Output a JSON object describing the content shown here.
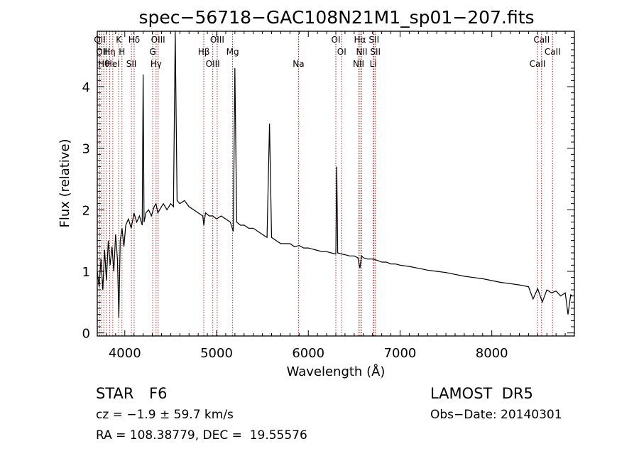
{
  "chart_data": {
    "type": "line",
    "title": "spec−56718−GAC108N21M1_sp01−207.fits",
    "xlabel": "Wavelength (Å)",
    "ylabel": "Flux (relative)",
    "xlim": [
      3700,
      8900
    ],
    "ylim": [
      -0.05,
      4.9
    ],
    "x_ticks": [
      4000,
      5000,
      6000,
      7000,
      8000
    ],
    "y_ticks": [
      0,
      1,
      2,
      3,
      4
    ],
    "grid": false,
    "series": [
      {
        "color": "#000000",
        "x": [
          3700,
          3720,
          3740,
          3760,
          3780,
          3800,
          3820,
          3840,
          3860,
          3880,
          3900,
          3920,
          3935,
          3950,
          3970,
          3990,
          4010,
          4040,
          4070,
          4100,
          4130,
          4160,
          4190,
          4200,
          4210,
          4230,
          4260,
          4290,
          4320,
          4340,
          4360,
          4380,
          4420,
          4460,
          4500,
          4530,
          4550,
          4570,
          4600,
          4650,
          4700,
          4750,
          4800,
          4850,
          4861,
          4880,
          4920,
          4960,
          5000,
          5050,
          5100,
          5150,
          5183,
          5200,
          5220,
          5260,
          5300,
          5350,
          5400,
          5450,
          5500,
          5550,
          5577,
          5600,
          5650,
          5700,
          5750,
          5800,
          5850,
          5900,
          5950,
          6000,
          6050,
          6100,
          6150,
          6200,
          6250,
          6300,
          6310,
          6320,
          6364,
          6400,
          6450,
          6500,
          6540,
          6563,
          6580,
          6600,
          6650,
          6700,
          6750,
          6800,
          6850,
          6900,
          6950,
          7000,
          7100,
          7200,
          7300,
          7400,
          7500,
          7600,
          7700,
          7800,
          7900,
          8000,
          8100,
          8200,
          8300,
          8400,
          8450,
          8500,
          8550,
          8600,
          8650,
          8700,
          8750,
          8800,
          8830,
          8860,
          8880
        ],
        "y": [
          1.0,
          0.75,
          1.2,
          0.7,
          1.35,
          0.85,
          1.5,
          1.1,
          1.4,
          1.0,
          1.6,
          1.2,
          0.25,
          1.5,
          1.7,
          1.4,
          1.75,
          1.85,
          1.7,
          1.95,
          1.8,
          1.9,
          1.75,
          4.2,
          1.8,
          1.95,
          2.0,
          1.9,
          2.05,
          2.1,
          1.95,
          2.0,
          2.1,
          2.0,
          2.1,
          2.05,
          4.9,
          2.15,
          2.1,
          2.15,
          2.05,
          2.0,
          1.95,
          1.9,
          1.75,
          1.95,
          1.9,
          1.9,
          1.85,
          1.9,
          1.85,
          1.8,
          1.65,
          4.3,
          1.8,
          1.75,
          1.75,
          1.7,
          1.7,
          1.65,
          1.6,
          1.55,
          3.4,
          1.55,
          1.5,
          1.45,
          1.45,
          1.45,
          1.4,
          1.42,
          1.38,
          1.38,
          1.36,
          1.34,
          1.32,
          1.32,
          1.3,
          1.28,
          2.7,
          1.3,
          1.28,
          1.27,
          1.25,
          1.25,
          1.22,
          1.05,
          1.25,
          1.22,
          1.2,
          1.2,
          1.18,
          1.15,
          1.15,
          1.12,
          1.12,
          1.1,
          1.08,
          1.05,
          1.02,
          1.0,
          0.98,
          0.95,
          0.92,
          0.9,
          0.88,
          0.85,
          0.82,
          0.8,
          0.78,
          0.75,
          0.55,
          0.72,
          0.5,
          0.7,
          0.65,
          0.68,
          0.6,
          0.65,
          0.3,
          0.62,
          0.6
        ]
      }
    ],
    "reference_lines": [
      {
        "wavelength": 3727,
        "labels": [
          "OII"
        ]
      },
      {
        "wavelength": 3750,
        "labels": [
          "OII"
        ]
      },
      {
        "wavelength": 3771,
        "labels": [
          "Hθ"
        ]
      },
      {
        "wavelength": 3798,
        "labels": []
      },
      {
        "wavelength": 3835,
        "labels": [
          "Hη"
        ]
      },
      {
        "wavelength": 3869,
        "labels": [
          "HeI"
        ]
      },
      {
        "wavelength": 3934,
        "labels": [
          "K"
        ]
      },
      {
        "wavelength": 3969,
        "labels": [
          "H"
        ]
      },
      {
        "wavelength": 4072,
        "labels": [
          "SII"
        ]
      },
      {
        "wavelength": 4102,
        "labels": [
          "Hδ"
        ]
      },
      {
        "wavelength": 4304,
        "labels": [
          "G"
        ]
      },
      {
        "wavelength": 4341,
        "labels": [
          "Hγ"
        ]
      },
      {
        "wavelength": 4363,
        "labels": [
          "OIII"
        ]
      },
      {
        "wavelength": 4861,
        "labels": [
          "Hβ"
        ]
      },
      {
        "wavelength": 4959,
        "labels": [
          "OIII"
        ]
      },
      {
        "wavelength": 5007,
        "labels": [
          "OIII"
        ]
      },
      {
        "wavelength": 5175,
        "labels": [
          "Mg"
        ]
      },
      {
        "wavelength": 5893,
        "labels": [
          "Na"
        ]
      },
      {
        "wavelength": 6300,
        "labels": [
          "OI"
        ]
      },
      {
        "wavelength": 6364,
        "labels": [
          "OI"
        ]
      },
      {
        "wavelength": 6548,
        "labels": [
          "NII"
        ]
      },
      {
        "wavelength": 6563,
        "labels": [
          "Hα"
        ]
      },
      {
        "wavelength": 6583,
        "labels": [
          "NII"
        ]
      },
      {
        "wavelength": 6707,
        "labels": [
          "Li"
        ]
      },
      {
        "wavelength": 6716,
        "labels": [
          "SII"
        ]
      },
      {
        "wavelength": 6731,
        "labels": [
          "SII"
        ]
      },
      {
        "wavelength": 8498,
        "labels": [
          "CaII"
        ]
      },
      {
        "wavelength": 8542,
        "labels": [
          "CaII"
        ]
      },
      {
        "wavelength": 8662,
        "labels": [
          "CaII"
        ]
      }
    ],
    "reference_line_color": "#b22222"
  },
  "info": {
    "class": "STAR",
    "subclass": "F6",
    "survey": "LAMOST  DR5",
    "cz": "cz = −1.9 ± 59.7 km/s",
    "obsdate": "Obs−Date: 20140301",
    "radec": "RA = 108.38779, DEC =  19.55576"
  }
}
